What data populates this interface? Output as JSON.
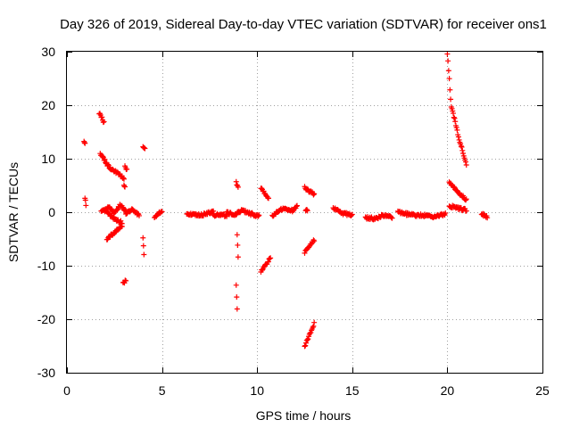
{
  "chart_data": {
    "type": "scatter",
    "title": "Day 326 of 2019, Sidereal Day-to-day VTEC variation (SDTVAR) for receiver ons1",
    "xlabel": "GPS time / hours",
    "ylabel": "SDTVAR / TECUs",
    "xlim": [
      0,
      25
    ],
    "ylim": [
      -30,
      30
    ],
    "xticks": [
      0,
      5,
      10,
      15,
      20,
      25
    ],
    "yticks": [
      -30,
      -20,
      -10,
      0,
      10,
      20,
      30
    ],
    "grid": true,
    "marker": "plus",
    "color": "#ff0000",
    "segments": [
      {
        "x": [
          0.9,
          0.95
        ],
        "y": [
          13.0,
          13.0
        ]
      },
      {
        "x": [
          0.95,
          1.0
        ],
        "y": [
          2.8,
          1.5
        ]
      },
      {
        "x": [
          1.7,
          1.95
        ],
        "y": [
          18.5,
          16.8
        ]
      },
      {
        "x": [
          1.75,
          2.2,
          2.7,
          3.0
        ],
        "y": [
          11.0,
          8.5,
          7.2,
          6.3
        ]
      },
      {
        "x": [
          3.0,
          3.05
        ],
        "y": [
          5.0,
          4.8
        ]
      },
      {
        "x": [
          3.05,
          3.15
        ],
        "y": [
          8.5,
          8.0
        ]
      },
      {
        "x": [
          1.8,
          2.2,
          2.5,
          2.8,
          3.1
        ],
        "y": [
          0.0,
          1.0,
          -0.2,
          1.3,
          0.2
        ]
      },
      {
        "x": [
          2.0,
          2.4,
          2.9
        ],
        "y": [
          0.3,
          -1.0,
          -2.0
        ]
      },
      {
        "x": [
          2.1,
          2.5,
          2.9
        ],
        "y": [
          -5.0,
          -3.8,
          -2.5
        ]
      },
      {
        "x": [
          3.1,
          3.4,
          3.8
        ],
        "y": [
          -0.3,
          0.6,
          -0.6
        ]
      },
      {
        "x": [
          2.95,
          3.1
        ],
        "y": [
          -13.2,
          -12.8
        ]
      },
      {
        "x": [
          4.0,
          4.1
        ],
        "y": [
          12.1,
          11.7
        ]
      },
      {
        "x": [
          4.0,
          4.05
        ],
        "y": [
          -5.0,
          -8.0
        ]
      },
      {
        "x": [
          4.6,
          5.0
        ],
        "y": [
          -0.8,
          0.2
        ]
      },
      {
        "x": [
          6.3,
          7.0,
          7.7
        ],
        "y": [
          -0.2,
          -0.6,
          0.1
        ]
      },
      {
        "x": [
          7.7,
          8.1,
          8.4
        ],
        "y": [
          -0.5,
          -0.4,
          -0.7
        ]
      },
      {
        "x": [
          8.4,
          8.8,
          9.2,
          9.7
        ],
        "y": [
          0.0,
          -0.6,
          0.4,
          -0.4
        ]
      },
      {
        "x": [
          9.7,
          10.1
        ],
        "y": [
          -0.3,
          -0.8
        ]
      },
      {
        "x": [
          8.9,
          9.0
        ],
        "y": [
          5.5,
          4.8
        ]
      },
      {
        "x": [
          8.95,
          9.0
        ],
        "y": [
          -4.0,
          -8.2
        ]
      },
      {
        "x": [
          8.9,
          8.95
        ],
        "y": [
          -13.5,
          -18.3
        ]
      },
      {
        "x": [
          10.2,
          10.6
        ],
        "y": [
          4.5,
          2.5
        ]
      },
      {
        "x": [
          10.2,
          10.7
        ],
        "y": [
          -11.2,
          -8.5
        ]
      },
      {
        "x": [
          10.8,
          11.3,
          11.9,
          12.1
        ],
        "y": [
          -0.7,
          0.6,
          0.3,
          1.1
        ]
      },
      {
        "x": [
          12.5,
          13.0
        ],
        "y": [
          4.6,
          3.3
        ]
      },
      {
        "x": [
          12.55,
          12.65
        ],
        "y": [
          0.5,
          0.2
        ]
      },
      {
        "x": [
          12.5,
          13.0
        ],
        "y": [
          -7.5,
          -5.2
        ]
      },
      {
        "x": [
          12.5,
          13.0
        ],
        "y": [
          -25.0,
          -20.8
        ]
      },
      {
        "x": [
          14.0,
          14.5,
          15.0
        ],
        "y": [
          0.8,
          -0.2,
          -0.5
        ]
      },
      {
        "x": [
          15.7,
          16.2,
          16.6,
          17.1
        ],
        "y": [
          -1.0,
          -1.2,
          -0.6,
          -0.9
        ]
      },
      {
        "x": [
          17.4,
          18.1,
          18.7,
          19.3,
          19.9
        ],
        "y": [
          0.0,
          -0.5,
          -0.6,
          -0.8,
          -0.4
        ]
      },
      {
        "x": [
          20.0,
          20.2,
          20.6,
          21.0
        ],
        "y": [
          29.8,
          20.0,
          14.0,
          8.8
        ]
      },
      {
        "x": [
          20.1,
          20.5,
          21.0
        ],
        "y": [
          5.8,
          4.0,
          2.3
        ]
      },
      {
        "x": [
          20.1,
          20.5,
          21.0
        ],
        "y": [
          1.2,
          0.8,
          0.4
        ]
      },
      {
        "x": [
          21.8,
          22.1
        ],
        "y": [
          -0.4,
          -0.8
        ]
      }
    ]
  }
}
